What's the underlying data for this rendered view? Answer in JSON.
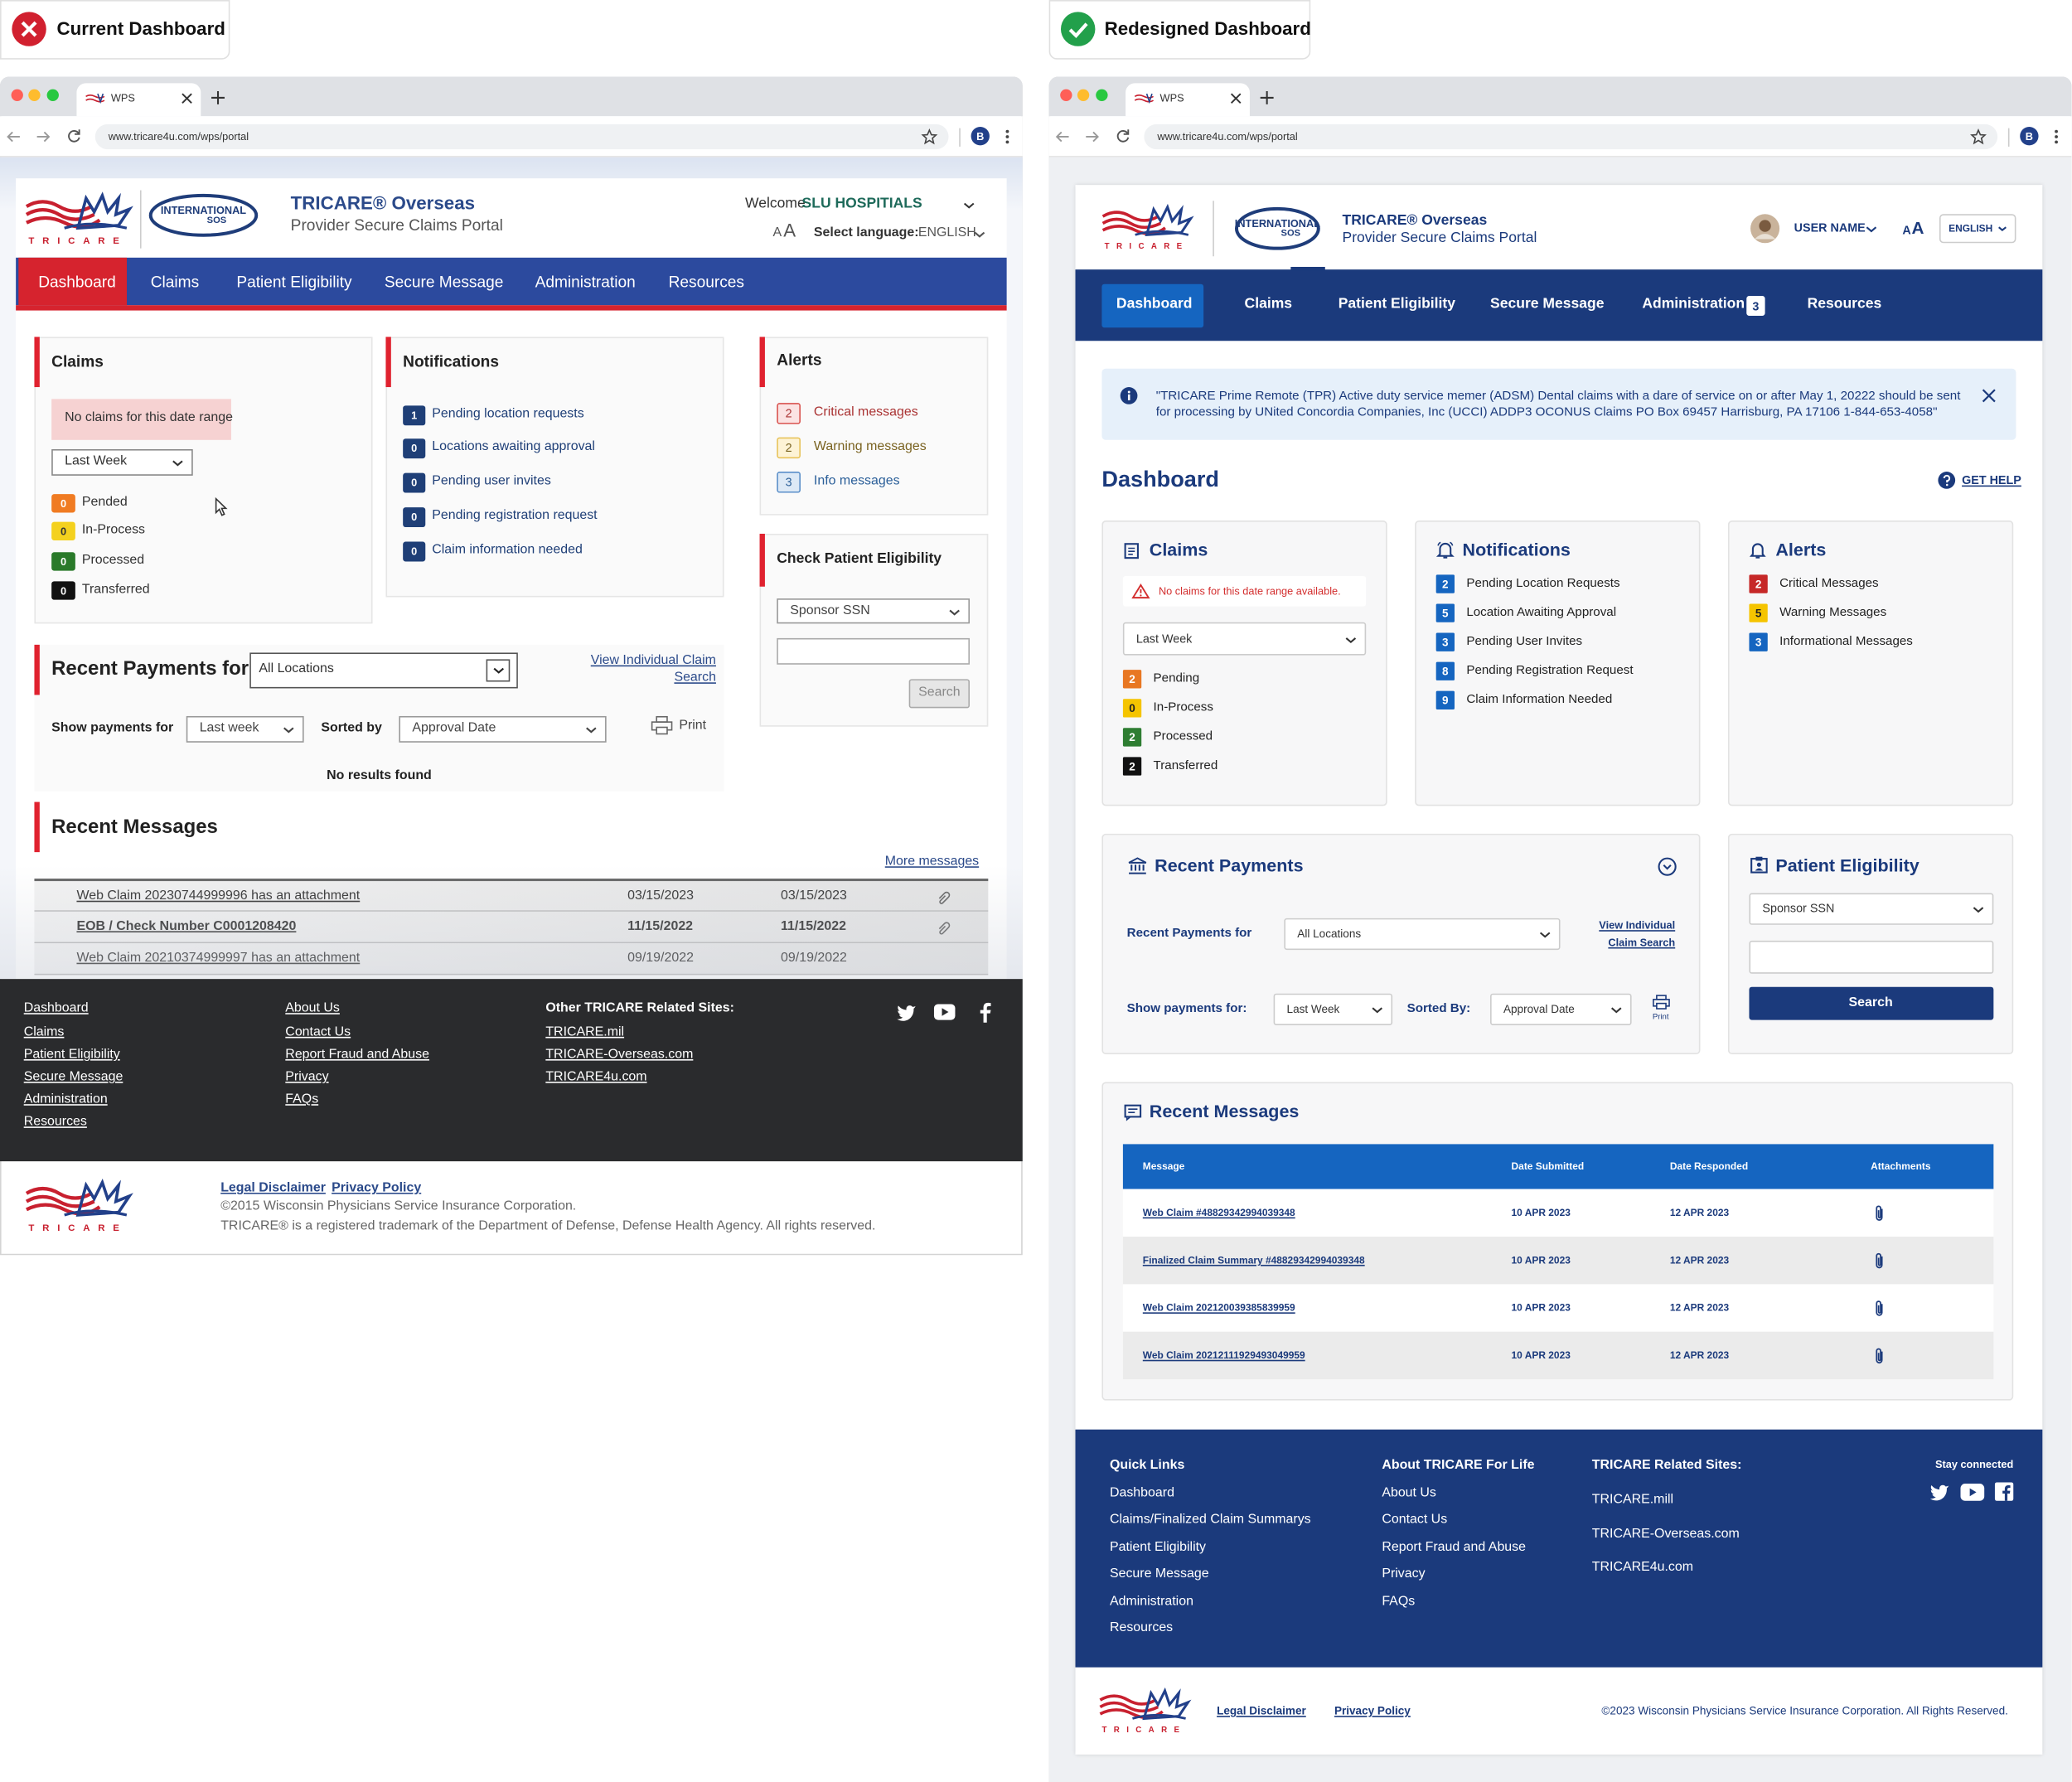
{
  "left": {
    "badge": "Current Dashboard",
    "tab": "WPS",
    "url": "www.tricare4u.com/wps/portal",
    "profile": "B",
    "logo": "TRICARE",
    "partner_top": "INTERNATIONAL",
    "partner_bottom": "SOS",
    "title": "TRICARE® Overseas",
    "subtitle": "Provider Secure Claims Portal",
    "welcome": "Welcome",
    "user": "SLU HOSPITIALS",
    "font_small": "A",
    "font_large": "A",
    "language_label": "Select language:",
    "language": "ENGLISH",
    "nav": [
      "Dashboard",
      "Claims",
      "Patient Eligibility",
      "Secure Message",
      "Administration",
      "Resources"
    ],
    "claims": {
      "title": "Claims",
      "empty": "No claims for this date range",
      "range": "Last Week",
      "statuses": [
        {
          "count": 0,
          "label": "Pended"
        },
        {
          "count": 0,
          "label": "In-Process"
        },
        {
          "count": 0,
          "label": "Processed"
        },
        {
          "count": 0,
          "label": "Transferred"
        }
      ]
    },
    "notifications": {
      "title": "Notifications",
      "items": [
        {
          "count": 1,
          "label": "Pending location requests"
        },
        {
          "count": 0,
          "label": "Locations awaiting approval"
        },
        {
          "count": 0,
          "label": "Pending user invites"
        },
        {
          "count": 0,
          "label": "Pending registration request"
        },
        {
          "count": 0,
          "label": "Claim information needed"
        }
      ]
    },
    "alerts": {
      "title": "Alerts",
      "items": [
        {
          "count": 2,
          "label": "Critical messages"
        },
        {
          "count": 2,
          "label": "Warning messages"
        },
        {
          "count": 3,
          "label": "Info messages"
        }
      ]
    },
    "eligibility": {
      "title": "Check Patient Eligibility",
      "select": "Sponsor SSN",
      "button": "Search"
    },
    "payments": {
      "title": "Recent Payments for",
      "location": "All Locations",
      "link": "View Individual Claim Search",
      "show": "Show payments for",
      "period": "Last week",
      "sorted": "Sorted by",
      "sort": "Approval Date",
      "print": "Print",
      "empty": "No results found"
    },
    "messages": {
      "title": "Recent Messages",
      "more": "More messages",
      "rows": [
        [
          "Web Claim 20230744999996 has an attachment",
          "03/15/2023",
          "03/15/2023"
        ],
        [
          "EOB / Check Number C0001208420",
          "11/15/2022",
          "11/15/2022"
        ],
        [
          "Web Claim 20210374999997 has an attachment",
          "09/19/2022",
          "09/19/2022"
        ]
      ]
    },
    "footer": {
      "links": [
        "Dashboard",
        "Claims",
        "Patient Eligibility",
        "Secure Message",
        "Administration",
        "Resources"
      ],
      "about": [
        "About Us",
        "Contact Us",
        "Report Fraud and Abuse",
        "Privacy",
        "FAQs"
      ],
      "related_title": "Other TRICARE Related Sites:",
      "related": [
        "TRICARE.mil",
        "TRICARE-Overseas.com",
        "TRICARE4u.com"
      ]
    },
    "bottom": {
      "legal": "Legal Disclaimer",
      "privacy": "Privacy Policy",
      "copyright": "©2015 Wisconsin Physicians Service Insurance Corporation.",
      "trademark": "TRICARE® is a registered trademark of the Department of Defense, Defense Health Agency. All rights reserved."
    }
  },
  "right": {
    "badge": "Redesigned Dashboard",
    "tab": "WPS",
    "url": "www.tricare4u.com/wps/portal",
    "profile": "B",
    "logo": "TRICARE",
    "partner_top": "INTERNATIONAL",
    "partner_bottom": "SOS",
    "title": "TRICARE® Overseas",
    "subtitle": "Provider Secure Claims Portal",
    "user": "USER NAME",
    "font_small": "A",
    "font_large": "A",
    "language": "ENGLISH",
    "nav": [
      "Dashboard",
      "Claims",
      "Patient Eligibility",
      "Secure Message",
      "Administration",
      "Resources"
    ],
    "nav_badge": 3,
    "banner": "\"TRICARE Prime Remote (TPR) Active duty service memer (ADSM) Dental claims with a dare of service on or after May 1, 20222 should be sent for processing by UNited Concordia Companies, Inc (UCCI) ADDP3 OCONUS Claims PO Box 69457 Harrisburg, PA 17106 1-844-653-4058\"",
    "heading": "Dashboard",
    "help": "GET HELP",
    "claims": {
      "title": "Claims",
      "empty": "No claims for this date range available.",
      "range": "Last Week",
      "statuses": [
        {
          "count": 2,
          "label": "Pending"
        },
        {
          "count": 0,
          "label": "In-Process"
        },
        {
          "count": 2,
          "label": "Processed"
        },
        {
          "count": 2,
          "label": "Transferred"
        }
      ]
    },
    "notifications": {
      "title": "Notifications",
      "items": [
        {
          "count": 2,
          "label": "Pending Location Requests"
        },
        {
          "count": 5,
          "label": "Location Awaiting Approval"
        },
        {
          "count": 3,
          "label": "Pending User Invites"
        },
        {
          "count": 8,
          "label": "Pending Registration Request"
        },
        {
          "count": 9,
          "label": "Claim Information Needed"
        }
      ]
    },
    "alerts": {
      "title": "Alerts",
      "items": [
        {
          "count": 2,
          "label": "Critical Messages"
        },
        {
          "count": 5,
          "label": "Warning Messages"
        },
        {
          "count": 3,
          "label": "Informational Messages"
        }
      ]
    },
    "payments": {
      "title": "Recent Payments",
      "for": "Recent Payments for",
      "location": "All Locations",
      "link": "View Individual Claim Search",
      "show": "Show payments for:",
      "period": "Last Week",
      "sorted": "Sorted By:",
      "sort": "Approval Date",
      "print": "Print"
    },
    "eligibility": {
      "title": "Patient Eligibility",
      "select": "Sponsor SSN",
      "button": "Search"
    },
    "messages": {
      "title": "Recent Messages",
      "columns": [
        "Message",
        "Date Submitted",
        "Date Responded",
        "Attachments"
      ],
      "rows": [
        [
          "Web Claim #48829342994039348",
          "10 APR 2023",
          "12 APR 2023"
        ],
        [
          "Finalized Claim Summary #48829342994039348",
          "10 APR 2023",
          "12 APR 2023"
        ],
        [
          "Web Claim 202120039385839959",
          "10 APR 2023",
          "12 APR 2023"
        ],
        [
          "Web Claim 20212111929493049959",
          "10 APR 2023",
          "12 APR 2023"
        ]
      ]
    },
    "footer": {
      "quick_title": "Quick Links",
      "quick": [
        "Dashboard",
        "Claims/Finalized Claim Summarys",
        "Patient Eligibility",
        "Secure Message",
        "Administration",
        "Resources"
      ],
      "about_title": "About TRICARE For Life",
      "about": [
        "About Us",
        "Contact Us",
        "Report Fraud and Abuse",
        "Privacy",
        "FAQs"
      ],
      "related_title": "TRICARE Related Sites:",
      "related": [
        "TRICARE.mill",
        "TRICARE-Overseas.com",
        "TRICARE4u.com"
      ],
      "social": "Stay connected"
    },
    "bottom": {
      "legal": "Legal Disclaimer",
      "privacy": "Privacy Policy",
      "copyright": "©2023 Wisconsin Physicians Service Insurance Corporation. All Rights Reserved."
    }
  }
}
